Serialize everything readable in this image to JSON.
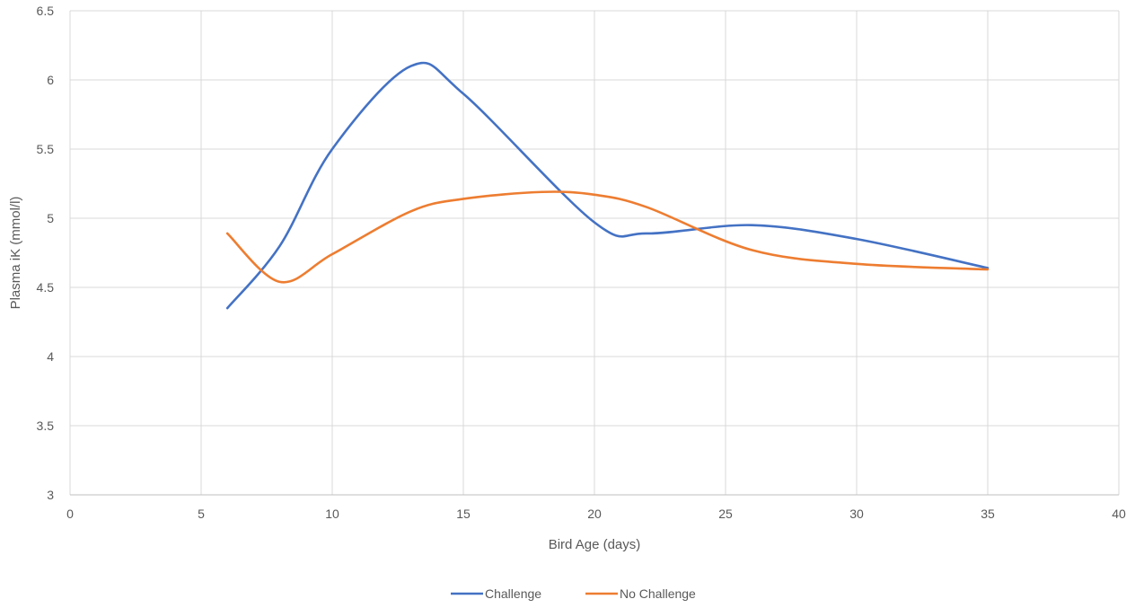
{
  "chart_data": {
    "type": "line",
    "smoothed": true,
    "title": "",
    "xlabel": "Bird Age (days)",
    "ylabel": "Plasma iK (mmol/l)",
    "xlim": [
      0,
      40
    ],
    "ylim": [
      3,
      6.5
    ],
    "x_ticks": [
      0,
      5,
      10,
      15,
      20,
      25,
      30,
      35,
      40
    ],
    "y_ticks": [
      3,
      3.5,
      4,
      4.5,
      5,
      5.5,
      6,
      6.5
    ],
    "x_tick_labels": [
      "0",
      "5",
      "10",
      "15",
      "20",
      "25",
      "30",
      "35",
      "40"
    ],
    "y_tick_labels": [
      "3",
      "3.5",
      "4",
      "4.5",
      "5",
      "5.5",
      "6",
      "6.5"
    ],
    "grid": true,
    "legend_position": "bottom",
    "series": [
      {
        "name": "Challenge",
        "color": "#4472C4",
        "x": [
          6,
          8,
          10,
          13,
          15,
          20,
          22,
          26,
          30,
          35
        ],
        "y": [
          4.35,
          4.8,
          5.5,
          6.1,
          5.9,
          4.97,
          4.89,
          4.95,
          4.85,
          4.64
        ]
      },
      {
        "name": "No Challenge",
        "color": "#ED7D31",
        "x": [
          6,
          8,
          10,
          13,
          15,
          18,
          20,
          22,
          26,
          30,
          35
        ],
        "y": [
          4.89,
          4.54,
          4.74,
          5.05,
          5.14,
          5.19,
          5.17,
          5.08,
          4.77,
          4.67,
          4.63
        ]
      }
    ]
  }
}
